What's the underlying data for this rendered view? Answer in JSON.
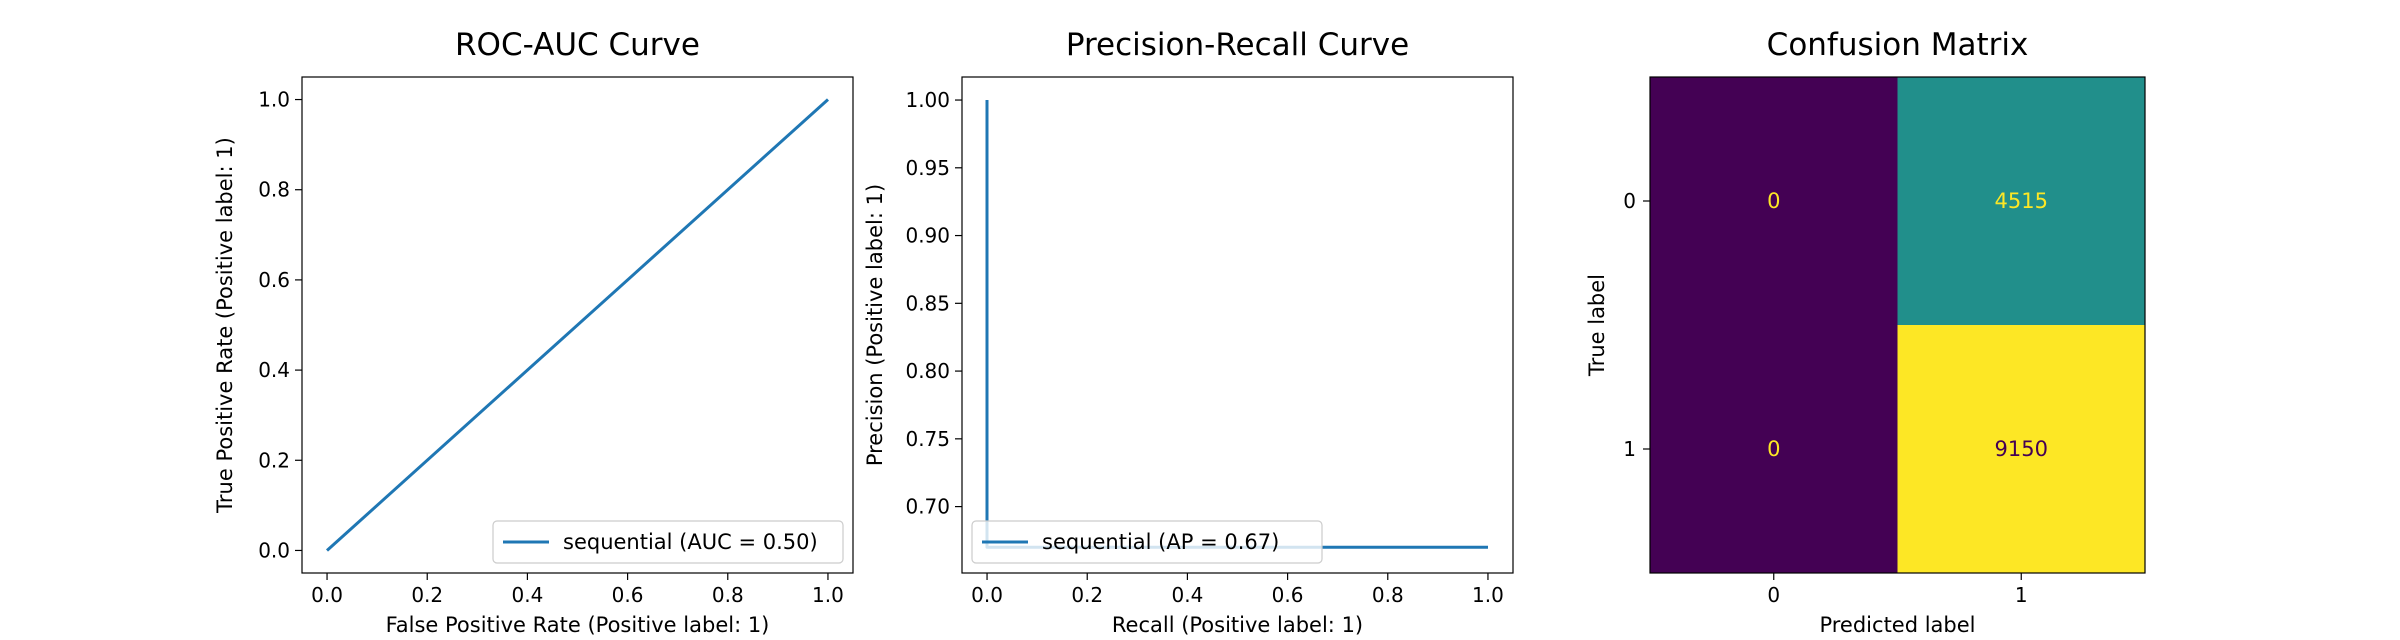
{
  "chart_data": [
    {
      "type": "line",
      "title": "ROC-AUC Curve",
      "xlabel": "False Positive Rate (Positive label: 1)",
      "ylabel": "True Positive Rate (Positive label: 1)",
      "xlim": [
        -0.05,
        1.05
      ],
      "ylim": [
        -0.05,
        1.05
      ],
      "xticks": [
        0.0,
        0.2,
        0.4,
        0.6,
        0.8,
        1.0
      ],
      "yticks": [
        0.0,
        0.2,
        0.4,
        0.6,
        0.8,
        1.0
      ],
      "tick_labels_x": [
        "0.0",
        "0.2",
        "0.4",
        "0.6",
        "0.8",
        "1.0"
      ],
      "tick_labels_y": [
        "0.0",
        "0.2",
        "0.4",
        "0.6",
        "0.8",
        "1.0"
      ],
      "legend_position": "lower-right",
      "grid": false,
      "series": [
        {
          "name": "sequential (AUC = 0.50)",
          "color": "#1f77b4",
          "x": [
            0.0,
            1.0
          ],
          "y": [
            0.0,
            1.0
          ]
        }
      ]
    },
    {
      "type": "line",
      "title": "Precision-Recall Curve",
      "xlabel": "Recall (Positive label: 1)",
      "ylabel": "Precision (Positive label: 1)",
      "xlim": [
        -0.05,
        1.05
      ],
      "ylim": [
        0.651,
        1.017
      ],
      "xticks": [
        0.0,
        0.2,
        0.4,
        0.6,
        0.8,
        1.0
      ],
      "yticks": [
        0.7,
        0.75,
        0.8,
        0.85,
        0.9,
        0.95,
        1.0
      ],
      "tick_labels_x": [
        "0.0",
        "0.2",
        "0.4",
        "0.6",
        "0.8",
        "1.0"
      ],
      "tick_labels_y": [
        "0.70",
        "0.75",
        "0.80",
        "0.85",
        "0.90",
        "0.95",
        "1.00"
      ],
      "legend_position": "lower-left",
      "grid": false,
      "series": [
        {
          "name": "sequential (AP = 0.67)",
          "color": "#1f77b4",
          "x": [
            0.0,
            0.0,
            1.0
          ],
          "y": [
            1.0,
            0.67,
            0.67
          ]
        }
      ]
    },
    {
      "type": "heatmap",
      "title": "Confusion Matrix",
      "xlabel": "Predicted label",
      "ylabel": "True label",
      "x_categories": [
        "0",
        "1"
      ],
      "y_categories": [
        "0",
        "1"
      ],
      "colormap": "viridis",
      "values": [
        [
          0,
          4515
        ],
        [
          0,
          9150
        ]
      ],
      "cell_labels": [
        [
          "0",
          "4515"
        ],
        [
          "0",
          "9150"
        ]
      ],
      "colors": {
        "low": "#440154",
        "mid": "#21918c",
        "high": "#fde725",
        "text_on_dark": "#fde725",
        "text_on_light": "#440154"
      }
    }
  ]
}
